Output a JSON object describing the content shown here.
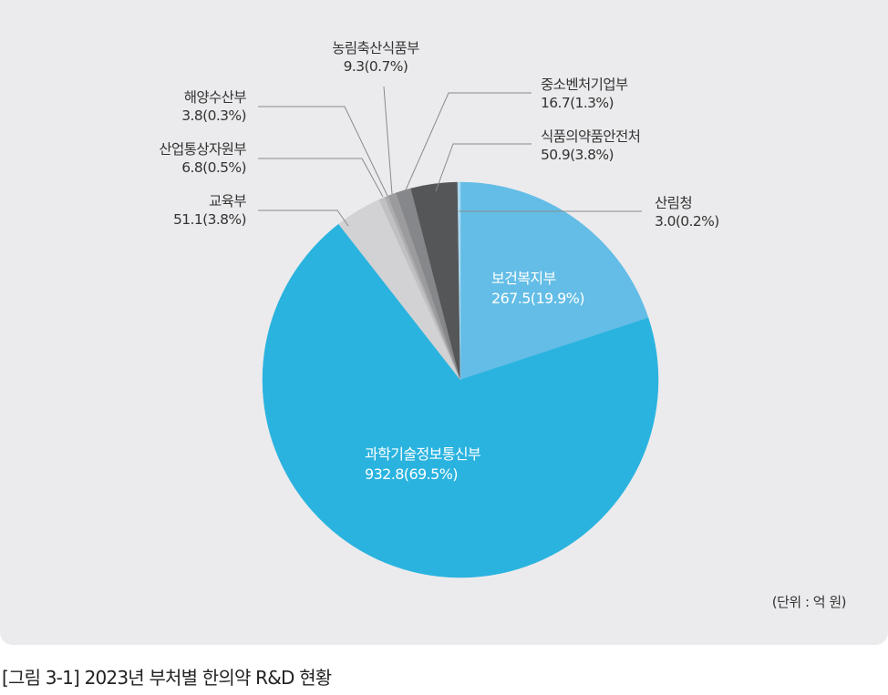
{
  "chart_data": {
    "type": "pie",
    "title": "[그림 3-1] 2023년 부처별 한의약 R&D 현황",
    "unit_note": "(단위 : 억 원)",
    "start_angle_deg": 0,
    "direction": "clockwise",
    "slices": [
      {
        "label": "보건복지부",
        "value": 267.5,
        "percent": 19.9,
        "value_text": "267.5(19.9%)",
        "color": "#63bde6",
        "label_position": "inside"
      },
      {
        "label": "과학기술정보통신부",
        "value": 932.8,
        "percent": 69.5,
        "value_text": "932.8(69.5%)",
        "color": "#2ab3df",
        "label_position": "inside"
      },
      {
        "label": "교육부",
        "value": 51.1,
        "percent": 3.8,
        "value_text": "51.1(3.8%)",
        "color": "#d2d2d4",
        "label_position": "outside-left"
      },
      {
        "label": "산업통상자원부",
        "value": 6.8,
        "percent": 0.5,
        "value_text": "6.8(0.5%)",
        "color": "#c0c0c2",
        "label_position": "outside-left"
      },
      {
        "label": "해양수산부",
        "value": 3.8,
        "percent": 0.3,
        "value_text": "3.8(0.3%)",
        "color": "#adadb0",
        "label_position": "outside-left"
      },
      {
        "label": "농림축산식품부",
        "value": 9.3,
        "percent": 0.7,
        "value_text": "9.3(0.7%)",
        "color": "#9b9b9e",
        "label_position": "outside-top"
      },
      {
        "label": "중소벤처기업부",
        "value": 16.7,
        "percent": 1.3,
        "value_text": "16.7(1.3%)",
        "color": "#86878a",
        "label_position": "outside-right"
      },
      {
        "label": "식품의약품안전처",
        "value": 50.9,
        "percent": 3.8,
        "value_text": "50.9(3.8%)",
        "color": "#555658",
        "label_position": "outside-right"
      },
      {
        "label": "산림청",
        "value": 3.0,
        "percent": 0.2,
        "value_text": "3.0(0.2%)",
        "color": "#a9d8f0",
        "label_position": "outside-right"
      }
    ]
  },
  "labels": {
    "boknji": {
      "name": "보건복지부",
      "val": "267.5(19.9%)"
    },
    "gwahak": {
      "name": "과학기술정보통신부",
      "val": "932.8(69.5%)"
    },
    "gyoyuk": {
      "name": "교육부",
      "val": "51.1(3.8%)"
    },
    "saneop": {
      "name": "산업통상자원부",
      "val": "6.8(0.5%)"
    },
    "haeyang": {
      "name": "해양수산부",
      "val": "3.8(0.3%)"
    },
    "nongrim": {
      "name": "농림축산식품부",
      "val": "9.3(0.7%)"
    },
    "jungso": {
      "name": "중소벤처기업부",
      "val": "16.7(1.3%)"
    },
    "sikpum": {
      "name": "식품의약품안전처",
      "val": "50.9(3.8%)"
    },
    "sanrim": {
      "name": "산림청",
      "val": "3.0(0.2%)"
    }
  },
  "unit_note": "(단위 : 억 원)",
  "caption": "[그림 3-1] 2023년 부처별 한의약 R&D 현황"
}
